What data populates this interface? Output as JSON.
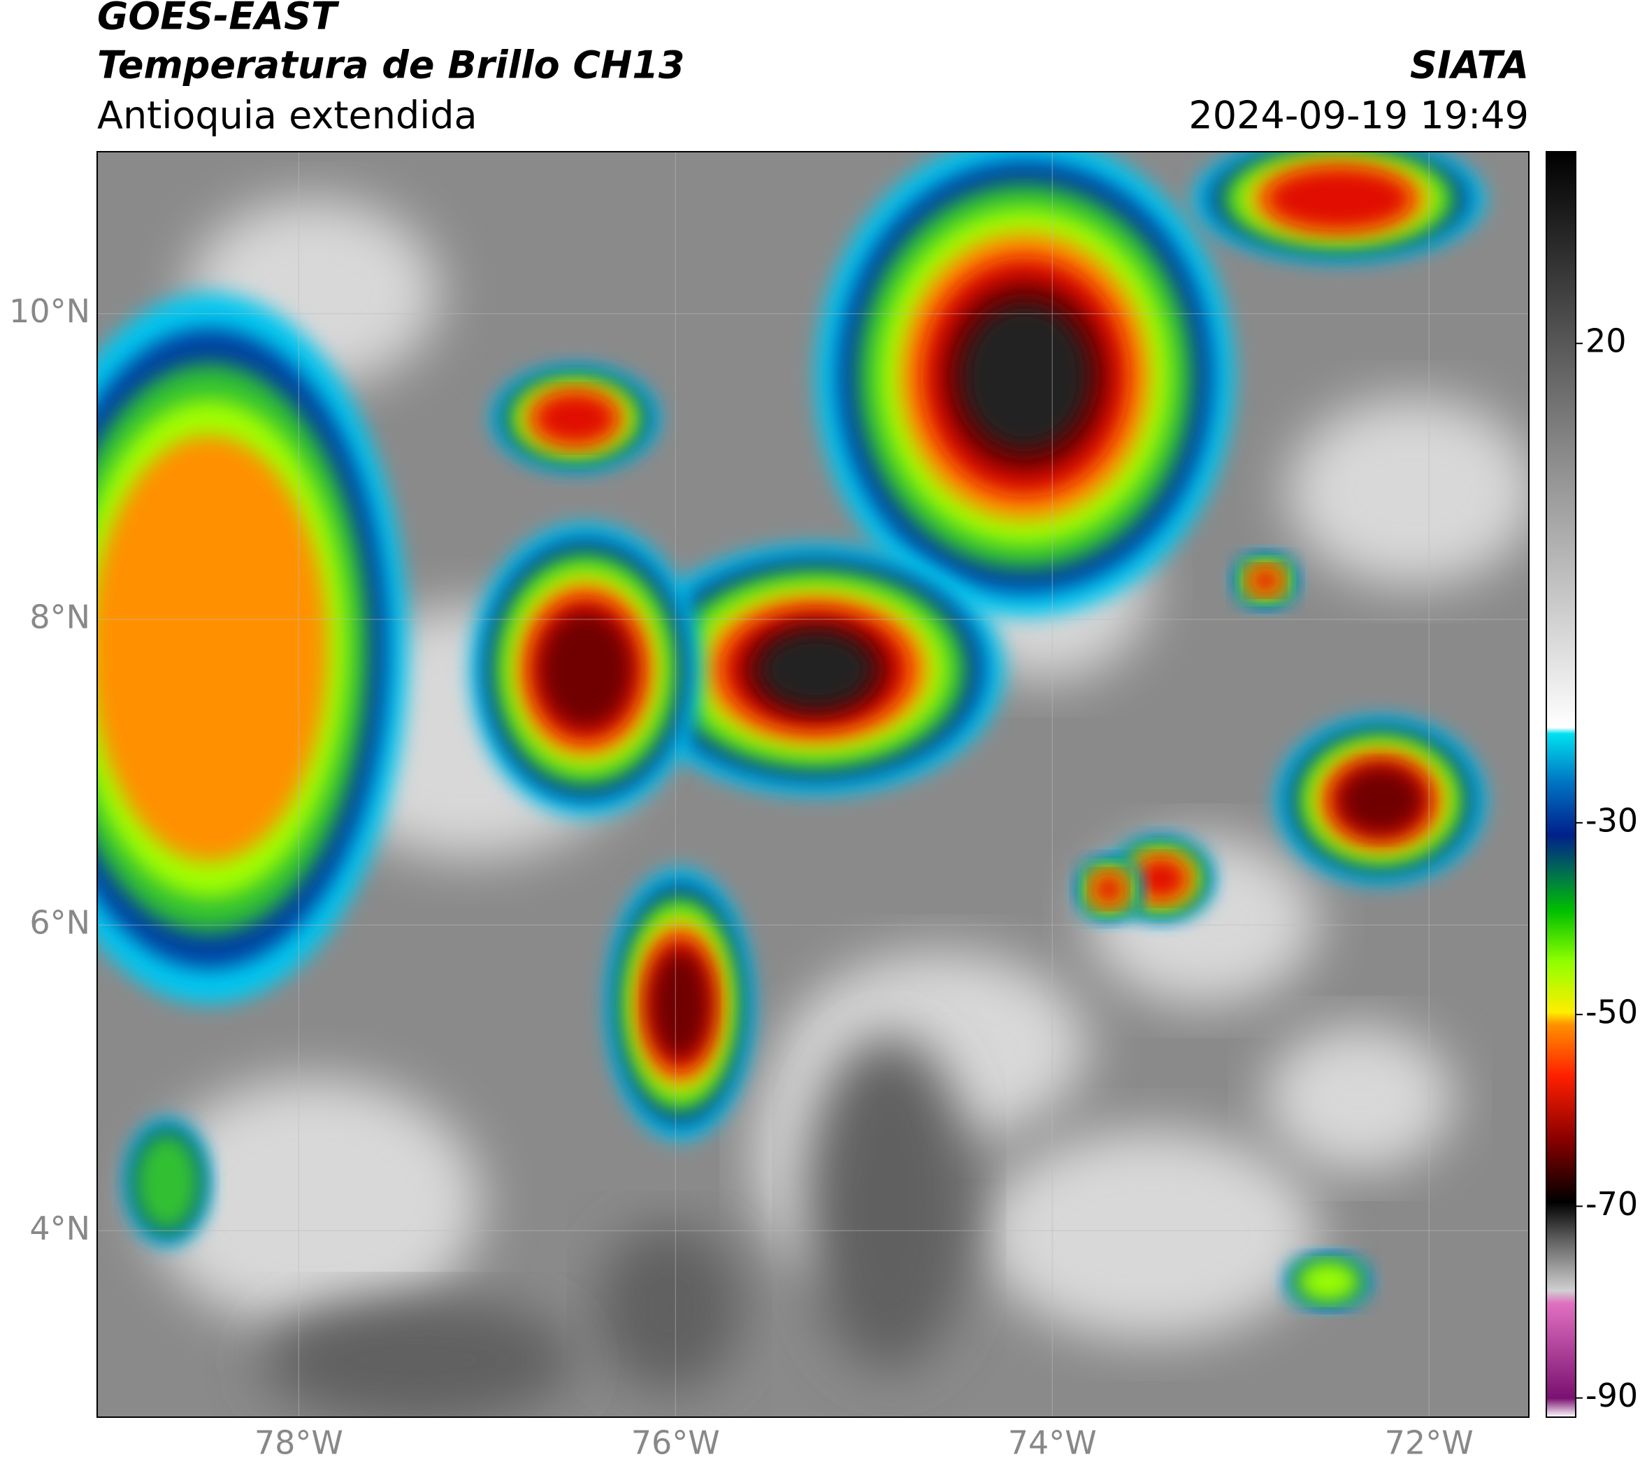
{
  "header": {
    "title": "GOES-EAST",
    "subtitle": "Temperatura de Brillo CH13",
    "region": "Antioquia extendida",
    "source": "SIATA",
    "timestamp": "2024-09-19 19:49"
  },
  "map": {
    "xlim": [
      -79.07,
      -71.47
    ],
    "ylim": [
      2.78,
      11.06
    ],
    "xticks": [
      {
        "value": -78,
        "label": "78°W"
      },
      {
        "value": -76,
        "label": "76°W"
      },
      {
        "value": -74,
        "label": "74°W"
      },
      {
        "value": -72,
        "label": "72°W"
      }
    ],
    "yticks": [
      {
        "value": 4,
        "label": "4°N"
      },
      {
        "value": 6,
        "label": "6°N"
      },
      {
        "value": 8,
        "label": "8°N"
      },
      {
        "value": 10,
        "label": "10°N"
      }
    ],
    "grid": true
  },
  "colorbar": {
    "lim": [
      -92,
      40
    ],
    "ticks": [
      20,
      -30,
      -50,
      -70,
      -90
    ]
  }
}
